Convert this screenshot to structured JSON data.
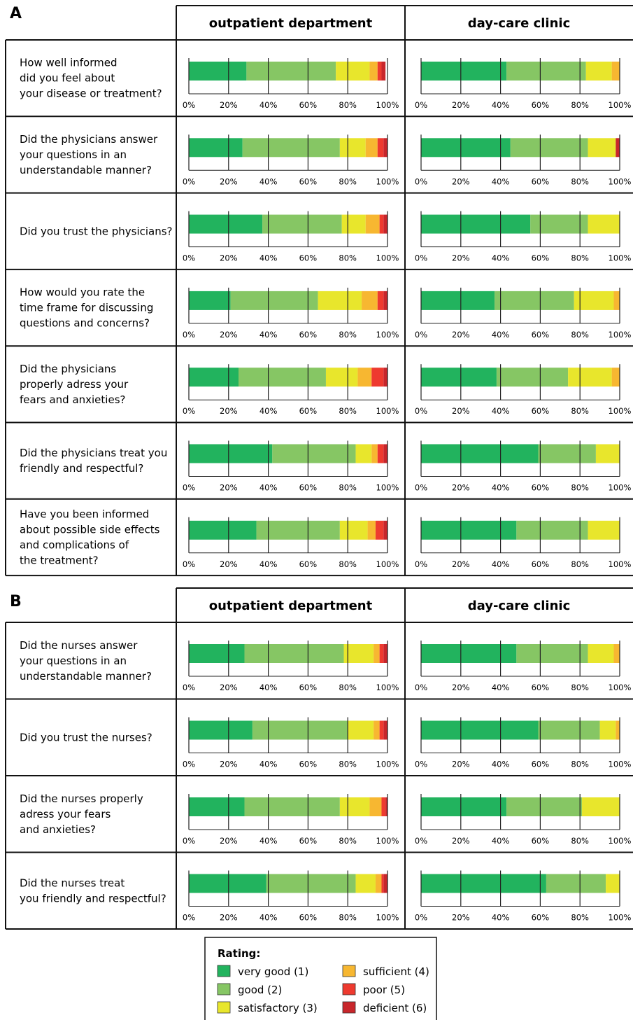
{
  "colors": {
    "very_good": "#22b35e",
    "good": "#86c664",
    "satisfactory": "#e8e62c",
    "sufficient": "#f7b731",
    "poor": "#ee3a2f",
    "deficient": "#c8262b"
  },
  "columns": [
    "outpatient department",
    "day-care clinic"
  ],
  "ticks": [
    "0%",
    "20%",
    "40%",
    "60%",
    "80%",
    "100%"
  ],
  "legend": {
    "title": "Rating:",
    "items": [
      {
        "key": "very_good",
        "label": "very good (1)"
      },
      {
        "key": "good",
        "label": "good (2)"
      },
      {
        "key": "satisfactory",
        "label": "satisfactory (3)"
      },
      {
        "key": "sufficient",
        "label": "sufficient (4)"
      },
      {
        "key": "poor",
        "label": "poor (5)"
      },
      {
        "key": "deficient",
        "label": "deficient (6)"
      }
    ]
  },
  "chart_data": [
    {
      "type": "bar",
      "panel": "A",
      "orientation": "horizontal-stacked-100",
      "xlim": [
        0,
        100
      ],
      "series_order": [
        "very good (1)",
        "good (2)",
        "satisfactory (3)",
        "sufficient (4)",
        "poor (5)",
        "deficient (6)"
      ],
      "rows": [
        {
          "question": [
            "How well informed",
            "did you feel about",
            "your disease or treatment?"
          ],
          "outpatient": [
            29,
            45,
            17,
            4,
            2,
            2
          ],
          "daycare": [
            43,
            40,
            13,
            4,
            0,
            0
          ]
        },
        {
          "question": [
            "Did the physicians answer",
            "your questions in an",
            "understandable manner?"
          ],
          "outpatient": [
            27,
            49,
            13,
            6,
            3,
            2
          ],
          "daycare": [
            45,
            39,
            14,
            0,
            0,
            2
          ]
        },
        {
          "question": [
            "Did you trust the physicians?"
          ],
          "outpatient": [
            37,
            40,
            12,
            7,
            2,
            2
          ],
          "daycare": [
            55,
            29,
            16,
            0,
            0,
            0
          ]
        },
        {
          "question": [
            "How would you rate the",
            "time frame for discussing",
            "questions and concerns?"
          ],
          "outpatient": [
            21,
            44,
            22,
            8,
            3,
            2
          ],
          "daycare": [
            37,
            40,
            20,
            3,
            0,
            0
          ]
        },
        {
          "question": [
            "Did the physicians",
            "properly adress your",
            "fears and anxieties?"
          ],
          "outpatient": [
            25,
            44,
            16,
            7,
            6,
            2
          ],
          "daycare": [
            38,
            36,
            22,
            4,
            0,
            0
          ]
        },
        {
          "question": [
            "Did the physicians treat you",
            "friendly and respectful?"
          ],
          "outpatient": [
            42,
            42,
            8,
            3,
            3,
            2
          ],
          "daycare": [
            59,
            29,
            12,
            0,
            0,
            0
          ]
        },
        {
          "question": [
            "Have you been informed",
            "about possible side effects",
            "and complications of",
            "the treatment?"
          ],
          "outpatient": [
            34,
            42,
            14,
            4,
            4,
            2
          ],
          "daycare": [
            48,
            36,
            16,
            0,
            0,
            0
          ]
        }
      ]
    },
    {
      "type": "bar",
      "panel": "B",
      "orientation": "horizontal-stacked-100",
      "xlim": [
        0,
        100
      ],
      "series_order": [
        "very good (1)",
        "good (2)",
        "satisfactory (3)",
        "sufficient (4)",
        "poor (5)",
        "deficient (6)"
      ],
      "rows": [
        {
          "question": [
            "Did the nurses answer",
            "your questions in an",
            "understandable manner?"
          ],
          "outpatient": [
            28,
            50,
            15,
            3,
            2,
            2
          ],
          "daycare": [
            48,
            36,
            13,
            3,
            0,
            0
          ]
        },
        {
          "question": [
            "Did you trust the nurses?"
          ],
          "outpatient": [
            32,
            48,
            13,
            3,
            2,
            2
          ],
          "daycare": [
            59,
            31,
            8,
            2,
            0,
            0
          ]
        },
        {
          "question": [
            "Did the nurses properly",
            "adress your fears",
            "and anxieties?"
          ],
          "outpatient": [
            28,
            48,
            15,
            6,
            2,
            1
          ],
          "daycare": [
            43,
            38,
            19,
            0,
            0,
            0
          ]
        },
        {
          "question": [
            "Did the nurses treat",
            "you friendly and respectful?"
          ],
          "outpatient": [
            39,
            45,
            10,
            3,
            1,
            2
          ],
          "daycare": [
            63,
            30,
            7,
            0,
            0,
            0
          ]
        }
      ]
    }
  ]
}
